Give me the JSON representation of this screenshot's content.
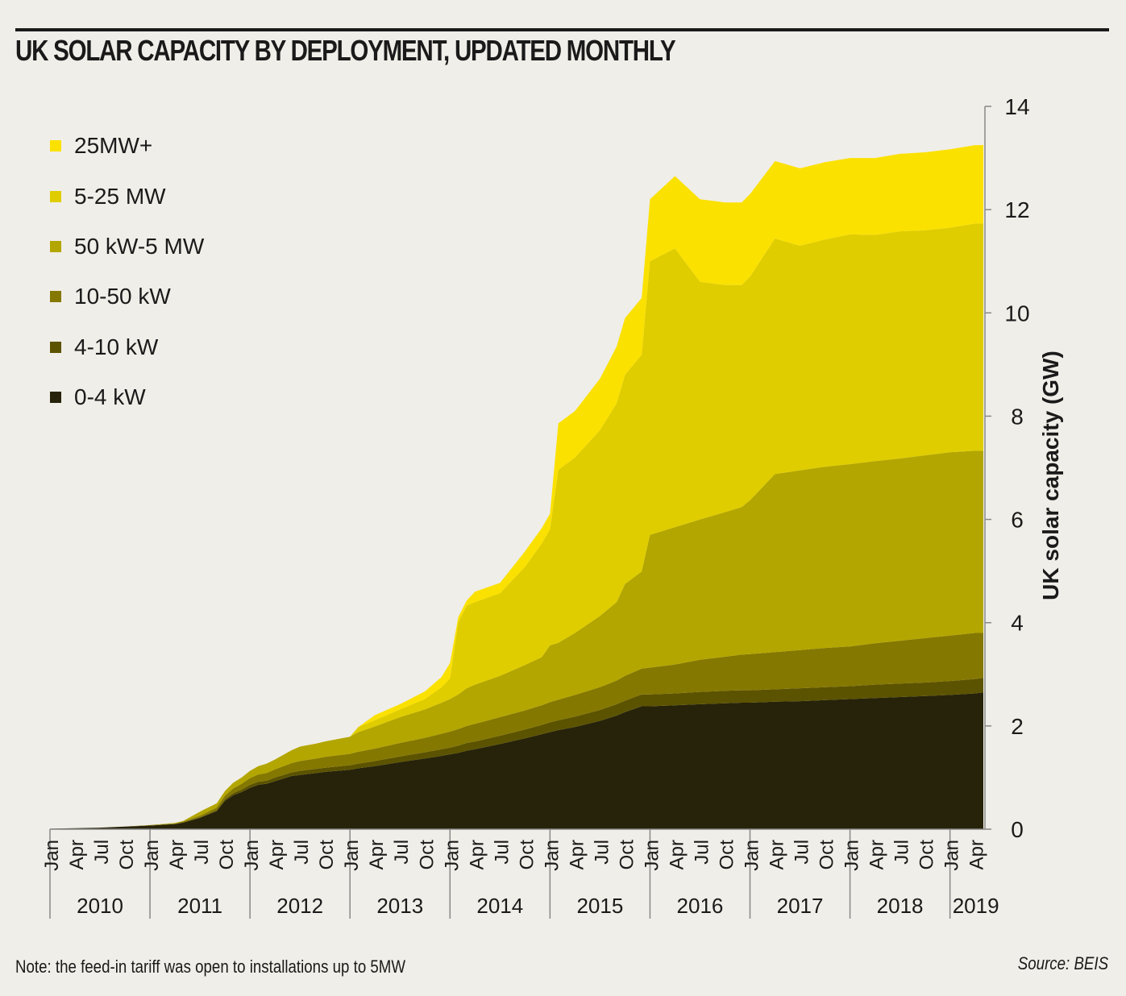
{
  "header": {
    "title": "UK SOLAR CAPACITY BY DEPLOYMENT, UPDATED MONTHLY"
  },
  "footer": {
    "note": "Note: the feed-in tariff was open to installations up to 5MW",
    "source": "Source: BEIS"
  },
  "chart_data": {
    "type": "area",
    "stacked": true,
    "title": "UK SOLAR CAPACITY BY DEPLOYMENT, UPDATED MONTHLY",
    "ylabel": "UK solar capacity (GW)",
    "xlabel": "",
    "ylim": [
      0,
      14
    ],
    "yticks": [
      0,
      2,
      4,
      6,
      8,
      10,
      12,
      14
    ],
    "y_axis_position": "right",
    "grid": false,
    "legend_position": "top-left",
    "x_month_ticks": [
      "Jan",
      "Apr",
      "Jul",
      "Oct"
    ],
    "x_year_labels": [
      "2010",
      "2011",
      "2012",
      "2013",
      "2014",
      "2015",
      "2016",
      "2017",
      "2018",
      "2019"
    ],
    "x_end": "2019-05",
    "x": [
      "2010-01",
      "2010-04",
      "2010-07",
      "2010-10",
      "2011-01",
      "2011-04",
      "2011-05",
      "2011-07",
      "2011-09",
      "2011-10",
      "2011-11",
      "2011-12",
      "2012-01",
      "2012-02",
      "2012-03",
      "2012-04",
      "2012-06",
      "2012-07",
      "2012-09",
      "2012-10",
      "2013-01",
      "2013-02",
      "2013-04",
      "2013-07",
      "2013-10",
      "2013-12",
      "2014-01",
      "2014-02",
      "2014-03",
      "2014-04",
      "2014-07",
      "2014-10",
      "2014-12",
      "2015-01",
      "2015-02",
      "2015-04",
      "2015-07",
      "2015-09",
      "2015-10",
      "2015-12",
      "2016-01",
      "2016-04",
      "2016-07",
      "2016-10",
      "2016-12",
      "2017-01",
      "2017-04",
      "2017-07",
      "2017-10",
      "2018-01",
      "2018-04",
      "2018-07",
      "2018-10",
      "2019-01",
      "2019-04",
      "2019-05"
    ],
    "series": [
      {
        "name": "0-4 kW",
        "color": "#27230a",
        "values": [
          0.01,
          0.02,
          0.03,
          0.05,
          0.07,
          0.1,
          0.13,
          0.22,
          0.35,
          0.55,
          0.66,
          0.72,
          0.8,
          0.86,
          0.88,
          0.93,
          1.03,
          1.05,
          1.09,
          1.11,
          1.15,
          1.18,
          1.22,
          1.3,
          1.37,
          1.42,
          1.45,
          1.48,
          1.52,
          1.55,
          1.65,
          1.76,
          1.84,
          1.88,
          1.92,
          1.98,
          2.1,
          2.2,
          2.27,
          2.38,
          2.38,
          2.4,
          2.42,
          2.44,
          2.45,
          2.45,
          2.47,
          2.48,
          2.5,
          2.52,
          2.54,
          2.56,
          2.58,
          2.6,
          2.63,
          2.65
        ]
      },
      {
        "name": "4-10 kW",
        "color": "#5c5300",
        "values": [
          0.0,
          0.0,
          0.0,
          0.0,
          0.0,
          0.0,
          0.0,
          0.01,
          0.02,
          0.03,
          0.04,
          0.05,
          0.06,
          0.06,
          0.06,
          0.07,
          0.07,
          0.08,
          0.08,
          0.08,
          0.09,
          0.09,
          0.1,
          0.11,
          0.12,
          0.13,
          0.13,
          0.14,
          0.15,
          0.15,
          0.16,
          0.17,
          0.18,
          0.19,
          0.19,
          0.2,
          0.21,
          0.22,
          0.22,
          0.23,
          0.23,
          0.23,
          0.24,
          0.24,
          0.24,
          0.24,
          0.24,
          0.25,
          0.25,
          0.25,
          0.26,
          0.26,
          0.26,
          0.27,
          0.28,
          0.28
        ]
      },
      {
        "name": "10-50 kW",
        "color": "#857800",
        "values": [
          0.0,
          0.0,
          0.0,
          0.0,
          0.01,
          0.01,
          0.02,
          0.03,
          0.05,
          0.07,
          0.09,
          0.11,
          0.13,
          0.14,
          0.15,
          0.16,
          0.18,
          0.19,
          0.2,
          0.21,
          0.22,
          0.23,
          0.24,
          0.26,
          0.28,
          0.3,
          0.31,
          0.32,
          0.33,
          0.34,
          0.36,
          0.37,
          0.38,
          0.39,
          0.4,
          0.42,
          0.44,
          0.46,
          0.48,
          0.5,
          0.52,
          0.56,
          0.62,
          0.66,
          0.69,
          0.7,
          0.72,
          0.74,
          0.76,
          0.77,
          0.8,
          0.83,
          0.86,
          0.88,
          0.89,
          0.87
        ]
      },
      {
        "name": "50 kW-5 MW",
        "color": "#b3a600",
        "values": [
          0.0,
          0.0,
          0.0,
          0.0,
          0.0,
          0.01,
          0.01,
          0.08,
          0.08,
          0.09,
          0.11,
          0.12,
          0.14,
          0.16,
          0.18,
          0.19,
          0.25,
          0.28,
          0.29,
          0.3,
          0.33,
          0.38,
          0.43,
          0.5,
          0.55,
          0.6,
          0.63,
          0.67,
          0.73,
          0.76,
          0.8,
          0.88,
          0.93,
          1.1,
          1.1,
          1.2,
          1.38,
          1.52,
          1.78,
          1.88,
          2.57,
          2.66,
          2.72,
          2.8,
          2.86,
          2.98,
          3.45,
          3.48,
          3.51,
          3.53,
          3.53,
          3.53,
          3.54,
          3.55,
          3.53,
          3.53
        ]
      },
      {
        "name": "5-25 MW",
        "color": "#dfcd00",
        "values": [
          0.0,
          0.0,
          0.0,
          0.0,
          0.0,
          0.0,
          0.0,
          0.0,
          0.0,
          0.0,
          0.0,
          0.0,
          0.0,
          0.0,
          0.0,
          0.0,
          0.0,
          0.0,
          0.0,
          0.0,
          0.0,
          0.1,
          0.12,
          0.15,
          0.2,
          0.3,
          0.4,
          1.4,
          1.6,
          1.6,
          1.6,
          1.9,
          2.2,
          2.25,
          3.35,
          3.4,
          3.6,
          3.85,
          4.05,
          4.2,
          5.3,
          5.4,
          4.6,
          4.4,
          4.3,
          4.33,
          4.56,
          4.35,
          4.4,
          4.45,
          4.38,
          4.4,
          4.36,
          4.35,
          4.4,
          4.4
        ]
      },
      {
        "name": "25MW+",
        "color": "#fbe100",
        "values": [
          0.0,
          0.0,
          0.0,
          0.0,
          0.0,
          0.0,
          0.0,
          0.0,
          0.0,
          0.0,
          0.0,
          0.0,
          0.0,
          0.0,
          0.0,
          0.0,
          0.0,
          0.0,
          0.0,
          0.0,
          0.0,
          0.0,
          0.1,
          0.1,
          0.15,
          0.2,
          0.3,
          0.1,
          0.1,
          0.2,
          0.2,
          0.3,
          0.3,
          0.3,
          0.9,
          0.9,
          1.0,
          1.1,
          1.1,
          1.1,
          1.2,
          1.4,
          1.6,
          1.6,
          1.6,
          1.6,
          1.5,
          1.5,
          1.5,
          1.48,
          1.49,
          1.5,
          1.51,
          1.52,
          1.52,
          1.52
        ]
      }
    ]
  }
}
